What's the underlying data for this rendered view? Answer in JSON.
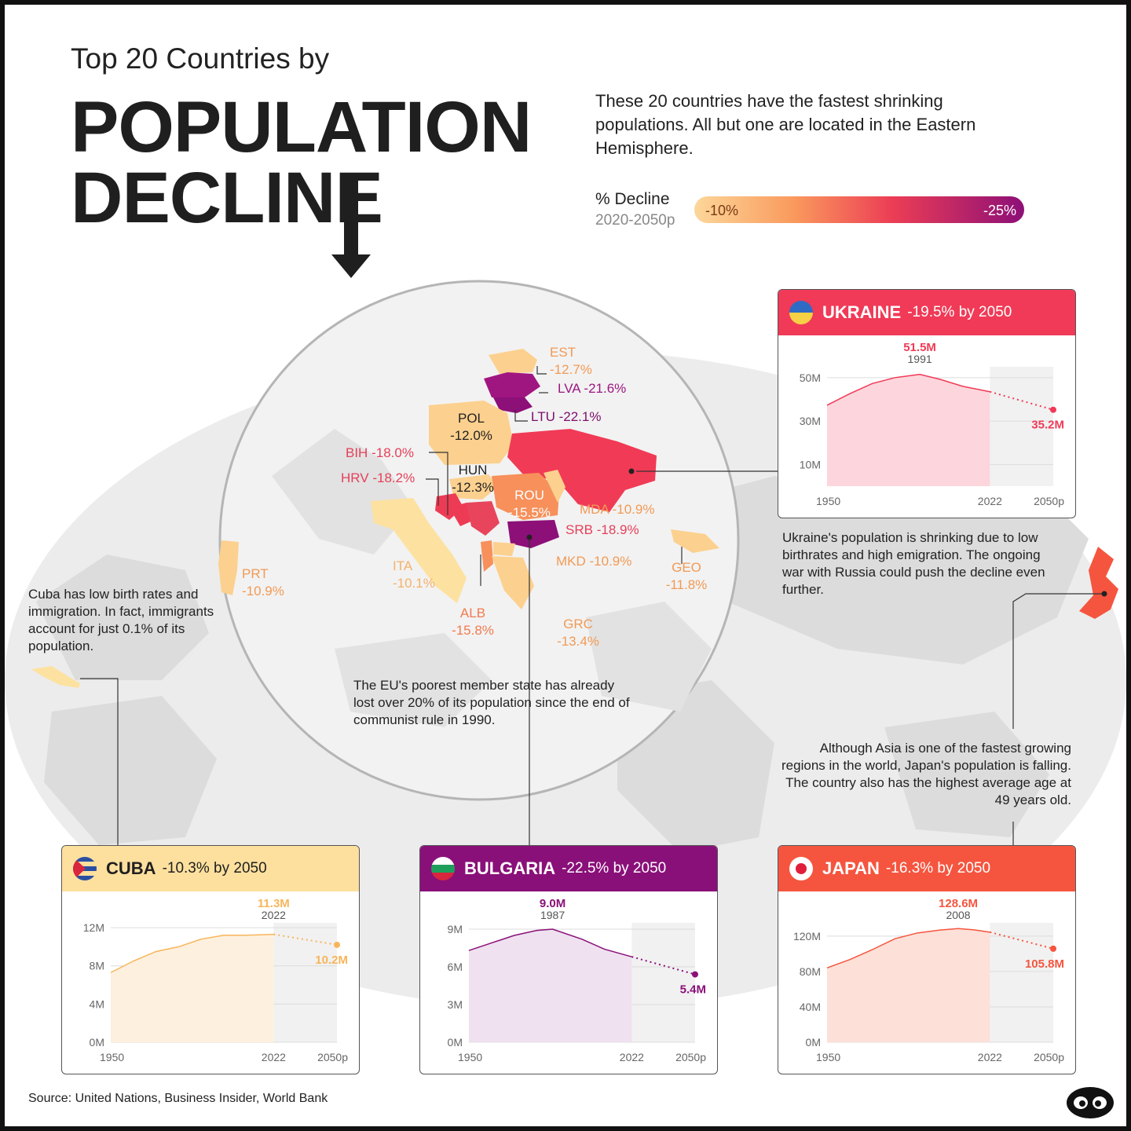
{
  "header": {
    "pre_title": "Top 20 Countries by",
    "title_line_1": "POPULATION",
    "title_line_2": "DECLINE",
    "intro": "These 20 countries have the fastest shrinking populations. All but one are located in the Eastern Hemisphere."
  },
  "legend": {
    "title": "% Decline",
    "subtitle": "2020-2050p",
    "min_label": "-10%",
    "max_label": "-25%",
    "colors": [
      "#fcd79a",
      "#fa9a5d",
      "#ec3d55",
      "#8d0f78"
    ]
  },
  "map_labels": [
    {
      "code": "EST",
      "value": "-12.7%"
    },
    {
      "code": "LVA",
      "value": "-21.6%"
    },
    {
      "code": "LTU",
      "value": "-22.1%"
    },
    {
      "code": "POL",
      "value": "-12.0%"
    },
    {
      "code": "BIH",
      "value": "-18.0%"
    },
    {
      "code": "HRV",
      "value": "-18.2%"
    },
    {
      "code": "HUN",
      "value": "-12.3%"
    },
    {
      "code": "ROU",
      "value": "-15.5%"
    },
    {
      "code": "MDA",
      "value": "-10.9%"
    },
    {
      "code": "SRB",
      "value": "-18.9%"
    },
    {
      "code": "MKD",
      "value": "-10.9%"
    },
    {
      "code": "ITA",
      "value": "-10.1%"
    },
    {
      "code": "PRT",
      "value": "-10.9%"
    },
    {
      "code": "ALB",
      "value": "-15.8%"
    },
    {
      "code": "GRC",
      "value": "-13.4%"
    },
    {
      "code": "GEO",
      "value": "-11.8%"
    }
  ],
  "notes": {
    "cuba": "Cuba has low birth rates and immigration. In fact, immigrants account for just 0.1% of its population.",
    "ukraine": "Ukraine's population is shrinking due to low birthrates and high emigration. The ongoing war with Russia could push the decline even further.",
    "bulgaria": "The EU's poorest member state has already  lost over 20% of its population since the end of communist rule in 1990.",
    "japan": "Although Asia is one of the fastest growing regions in the world, Japan's population is falling. The country also has the  highest average age at 49 years old."
  },
  "chart_data": [
    {
      "type": "area",
      "title": "UKRAINE",
      "subtitle": "-19.5% by 2050",
      "color": "#f03a57",
      "fill": "#fcd6dc",
      "ylim": [
        0,
        55
      ],
      "yticks": [
        10,
        30,
        50
      ],
      "ytick_labels": [
        "10M",
        "30M",
        "50M"
      ],
      "xlim": [
        1950,
        2050
      ],
      "xtick_labels": [
        "1950",
        "2022",
        "2050p"
      ],
      "x": [
        1950,
        1960,
        1970,
        1980,
        1991,
        2000,
        2010,
        2022
      ],
      "values": [
        37.3,
        42.6,
        47.3,
        50.0,
        51.5,
        49.2,
        46.0,
        43.5
      ],
      "projection": {
        "x": [
          2022,
          2050
        ],
        "values": [
          43.5,
          35.2
        ]
      },
      "peak": {
        "x": 1991,
        "value": 51.5,
        "label": "51.5M",
        "year_label": "1991"
      },
      "end_label": "35.2M"
    },
    {
      "type": "area",
      "title": "CUBA",
      "subtitle": "-10.3% by 2050",
      "color": "#f7b55a",
      "fill": "#fef0de",
      "ylim": [
        0,
        12.5
      ],
      "yticks": [
        0,
        4,
        8,
        12
      ],
      "ytick_labels": [
        "0M",
        "4M",
        "8M",
        "12M"
      ],
      "xlim": [
        1950,
        2050
      ],
      "xtick_labels": [
        "1950",
        "2022",
        "2050p"
      ],
      "x": [
        1950,
        1960,
        1970,
        1980,
        1990,
        2000,
        2010,
        2022
      ],
      "values": [
        7.3,
        8.5,
        9.5,
        10.0,
        10.8,
        11.2,
        11.2,
        11.3
      ],
      "projection": {
        "x": [
          2022,
          2050
        ],
        "values": [
          11.3,
          10.2
        ]
      },
      "peak": {
        "x": 2022,
        "value": 11.3,
        "label": "11.3M",
        "year_label": "2022"
      },
      "end_label": "10.2M"
    },
    {
      "type": "area",
      "title": "BULGARIA",
      "subtitle": "-22.5% by 2050",
      "color": "#8a1079",
      "fill": "#efe1f0",
      "ylim": [
        0,
        9.5
      ],
      "yticks": [
        0,
        3,
        6,
        9
      ],
      "ytick_labels": [
        "0M",
        "3M",
        "6M",
        "9M"
      ],
      "xlim": [
        1950,
        2050
      ],
      "xtick_labels": [
        "1950",
        "2022",
        "2050p"
      ],
      "x": [
        1950,
        1960,
        1970,
        1980,
        1987,
        2000,
        2010,
        2022
      ],
      "values": [
        7.3,
        7.9,
        8.5,
        8.9,
        9.0,
        8.2,
        7.4,
        6.8
      ],
      "projection": {
        "x": [
          2022,
          2050
        ],
        "values": [
          6.8,
          5.4
        ]
      },
      "peak": {
        "x": 1987,
        "value": 9.0,
        "label": "9.0M",
        "year_label": "1987"
      },
      "end_label": "5.4M"
    },
    {
      "type": "area",
      "title": "JAPAN",
      "subtitle": "-16.3% by 2050",
      "color": "#f5553f",
      "fill": "#fde0d8",
      "ylim": [
        0,
        135
      ],
      "yticks": [
        0,
        40,
        80,
        120
      ],
      "ytick_labels": [
        "0M",
        "40M",
        "80M",
        "120M"
      ],
      "xlim": [
        1950,
        2050
      ],
      "xtick_labels": [
        "1950",
        "2022",
        "2050p"
      ],
      "x": [
        1950,
        1960,
        1970,
        1980,
        1990,
        2000,
        2008,
        2015,
        2022
      ],
      "values": [
        84.1,
        93.4,
        104.7,
        117.1,
        123.6,
        126.9,
        128.6,
        127.1,
        124.5
      ],
      "projection": {
        "x": [
          2022,
          2050
        ],
        "values": [
          124.5,
          105.8
        ]
      },
      "peak": {
        "x": 2008,
        "value": 128.6,
        "label": "128.6M",
        "year_label": "2008"
      },
      "end_label": "105.8M"
    }
  ],
  "footer": {
    "source": "Source: United Nations, Business Insider, World Bank"
  }
}
